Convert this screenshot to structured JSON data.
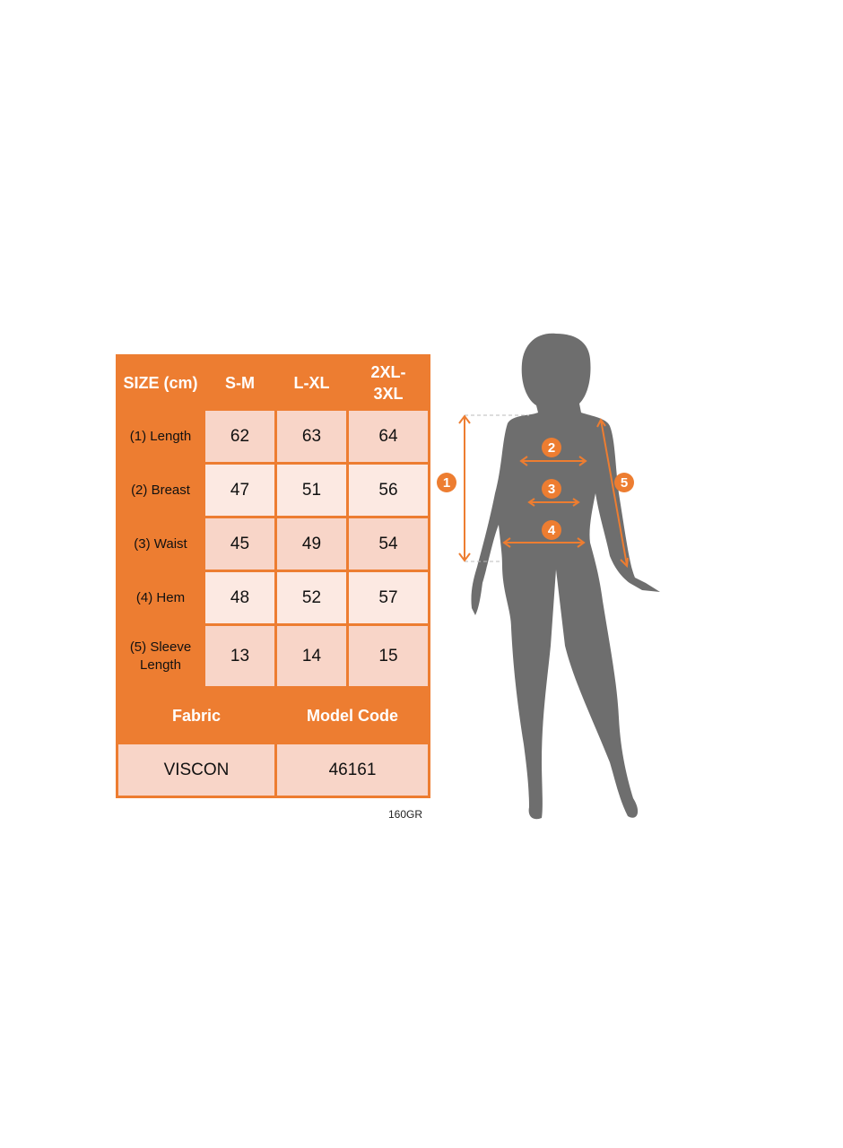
{
  "table": {
    "header": [
      "SIZE (cm)",
      "S-M",
      "L-XL",
      "2XL-3XL"
    ],
    "rows": [
      {
        "label": "(1) Length",
        "values": [
          "62",
          "63",
          "64"
        ]
      },
      {
        "label": "(2) Breast",
        "values": [
          "47",
          "51",
          "56"
        ]
      },
      {
        "label": "(3) Waist",
        "values": [
          "45",
          "49",
          "54"
        ]
      },
      {
        "label": "(4) Hem",
        "values": [
          "48",
          "52",
          "57"
        ]
      },
      {
        "label": "(5) Sleeve Length",
        "values": [
          "13",
          "14",
          "15"
        ]
      }
    ],
    "footer_header": [
      "Fabric",
      "Model Code"
    ],
    "footer_values": [
      "VISCON",
      "46161"
    ]
  },
  "note": "160GR",
  "figure": {
    "markers": [
      "1",
      "2",
      "3",
      "4",
      "5"
    ],
    "accent_color": "#ED7D31",
    "silhouette_color": "#6E6E6E"
  }
}
